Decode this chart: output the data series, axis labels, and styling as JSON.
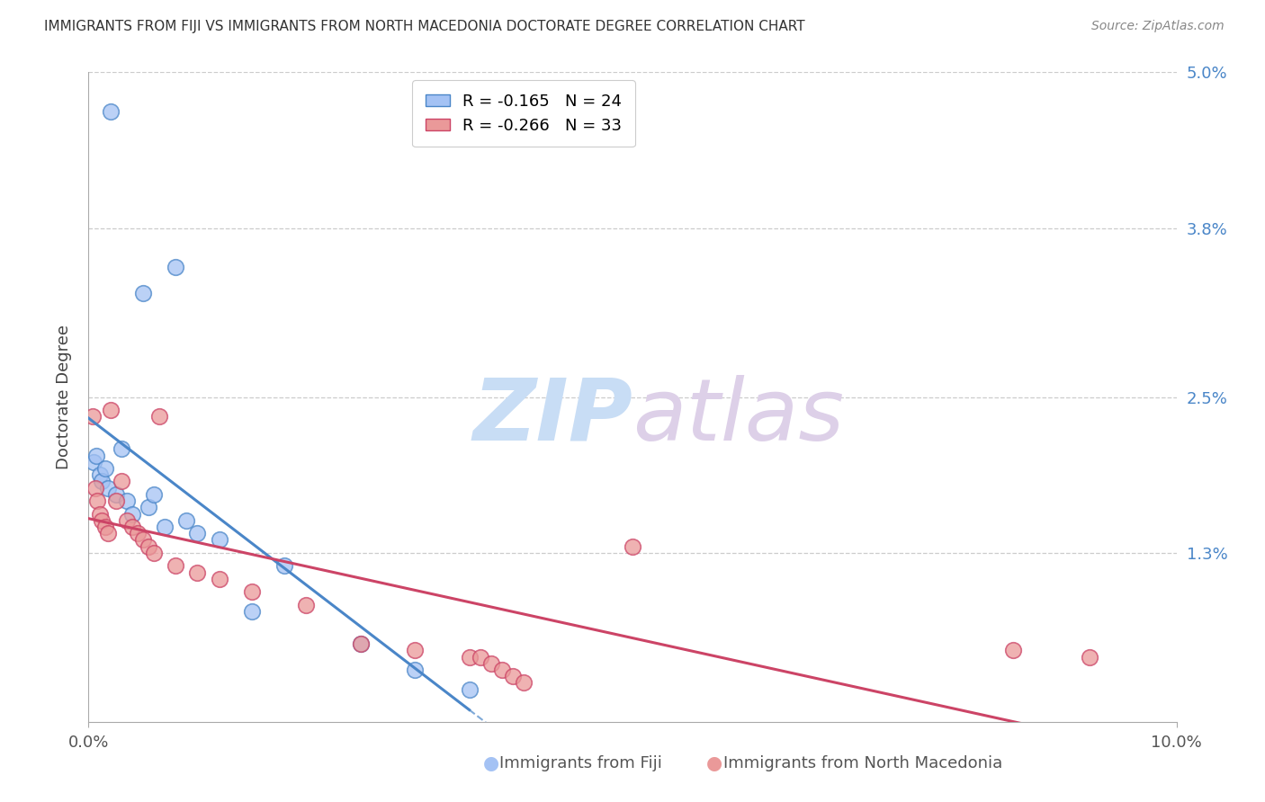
{
  "title": "IMMIGRANTS FROM FIJI VS IMMIGRANTS FROM NORTH MACEDONIA DOCTORATE DEGREE CORRELATION CHART",
  "source": "Source: ZipAtlas.com",
  "ylabel": "Doctorate Degree",
  "x_min": 0.0,
  "x_max": 10.0,
  "y_min": 0.0,
  "y_max": 5.0,
  "fiji_color": "#a4c2f4",
  "fiji_color_line": "#4a86c8",
  "macedonia_color": "#ea9999",
  "macedonia_color_line": "#cc4466",
  "fiji_R": -0.165,
  "fiji_N": 24,
  "macedonia_R": -0.266,
  "macedonia_N": 33,
  "fiji_scatter_x": [
    0.05,
    0.07,
    0.1,
    0.12,
    0.15,
    0.18,
    0.2,
    0.25,
    0.3,
    0.35,
    0.4,
    0.5,
    0.55,
    0.6,
    0.7,
    0.8,
    0.9,
    1.0,
    1.2,
    1.5,
    1.8,
    2.5,
    3.0,
    3.5
  ],
  "fiji_scatter_y": [
    2.0,
    2.05,
    1.9,
    1.85,
    1.95,
    1.8,
    4.7,
    1.75,
    2.1,
    1.7,
    1.6,
    3.3,
    1.65,
    1.75,
    1.5,
    3.5,
    1.55,
    1.45,
    1.4,
    0.85,
    1.2,
    0.6,
    0.4,
    0.25
  ],
  "macedonia_scatter_x": [
    0.04,
    0.06,
    0.08,
    0.1,
    0.12,
    0.15,
    0.18,
    0.2,
    0.25,
    0.3,
    0.35,
    0.4,
    0.45,
    0.5,
    0.55,
    0.6,
    0.65,
    0.8,
    1.0,
    1.2,
    1.5,
    2.0,
    2.5,
    3.0,
    3.5,
    3.6,
    3.7,
    3.8,
    3.9,
    4.0,
    5.0,
    8.5,
    9.2
  ],
  "macedonia_scatter_y": [
    2.35,
    1.8,
    1.7,
    1.6,
    1.55,
    1.5,
    1.45,
    2.4,
    1.7,
    1.85,
    1.55,
    1.5,
    1.45,
    1.4,
    1.35,
    1.3,
    2.35,
    1.2,
    1.15,
    1.1,
    1.0,
    0.9,
    0.6,
    0.55,
    0.5,
    0.5,
    0.45,
    0.4,
    0.35,
    0.3,
    1.35,
    0.55,
    0.5
  ],
  "watermark_zip": "ZIP",
  "watermark_atlas": "atlas"
}
